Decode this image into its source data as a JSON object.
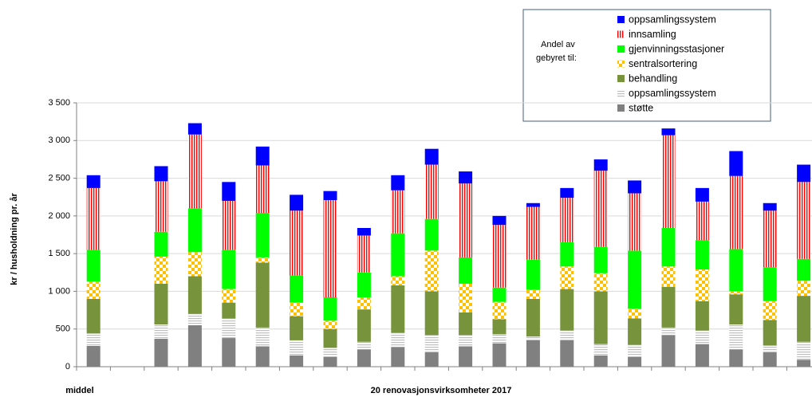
{
  "chart_data": {
    "type": "stacked-bar",
    "y_axis_label": "kr / husholdning pr. år",
    "x_axis_label": "20 renovasjonsvirksomheter 2017",
    "legend_title": [
      "Andel av",
      "gebyret til:"
    ],
    "categories": [
      "middel",
      null,
      null,
      null,
      null,
      null,
      null,
      null,
      null,
      null,
      null,
      null,
      null,
      null,
      null,
      null,
      null,
      null,
      null,
      null,
      null,
      null
    ],
    "series": [
      {
        "name": "støtte",
        "color": "#808080",
        "pattern": "solid",
        "values": [
          275,
          null,
          370,
          550,
          380,
          270,
          150,
          130,
          230,
          260,
          190,
          270,
          310,
          350,
          350,
          150,
          130,
          420,
          300,
          230,
          190,
          90
        ]
      },
      {
        "name": "oppsamlingssystem",
        "color": "#bfbfbf",
        "pattern": "horizontal-stripes",
        "values": [
          165,
          null,
          190,
          150,
          260,
          250,
          200,
          120,
          100,
          190,
          230,
          150,
          120,
          50,
          130,
          150,
          160,
          100,
          180,
          330,
          90,
          240
        ]
      },
      {
        "name": "behandling",
        "color": "#77933c",
        "pattern": "solid",
        "values": [
          460,
          null,
          540,
          500,
          210,
          860,
          320,
          250,
          430,
          630,
          580,
          300,
          200,
          500,
          550,
          700,
          350,
          540,
          390,
          400,
          340,
          610
        ]
      },
      {
        "name": "sentralsortering",
        "color": "#ffc000",
        "pattern": "checker",
        "values": [
          230,
          null,
          360,
          320,
          180,
          70,
          180,
          110,
          160,
          120,
          540,
          380,
          230,
          120,
          300,
          240,
          130,
          270,
          420,
          40,
          250,
          200
        ]
      },
      {
        "name": "gjenvinningsstasjoner",
        "color": "#00ff00",
        "pattern": "solid",
        "values": [
          420,
          null,
          330,
          580,
          520,
          590,
          360,
          310,
          330,
          570,
          420,
          350,
          190,
          400,
          320,
          350,
          770,
          510,
          390,
          560,
          450,
          290
        ]
      },
      {
        "name": "innsamling",
        "color": "#ff0000",
        "pattern": "vertical-stripes",
        "values": [
          820,
          null,
          670,
          980,
          650,
          630,
          860,
          1290,
          490,
          570,
          720,
          980,
          830,
          700,
          590,
          1010,
          760,
          1230,
          510,
          970,
          750,
          1020
        ]
      },
      {
        "name": "oppsamlingssystem",
        "color": "#0000ff",
        "pattern": "solid",
        "values": [
          170,
          null,
          200,
          150,
          250,
          250,
          210,
          120,
          100,
          200,
          210,
          160,
          120,
          50,
          130,
          150,
          170,
          90,
          180,
          330,
          100,
          230
        ]
      }
    ],
    "ylim": [
      0,
      3500
    ],
    "yticks": [
      0,
      500,
      {
        "value": 1000,
        "label": "1 000"
      },
      {
        "value": 1500,
        "label": "1 500"
      },
      {
        "value": 2000,
        "label": "2 000"
      },
      {
        "value": 2500,
        "label": "2 500"
      },
      {
        "value": 3000,
        "label": "3 000"
      },
      {
        "value": 3500,
        "label": "3 500"
      }
    ],
    "grid": true,
    "legend": "top-right"
  }
}
